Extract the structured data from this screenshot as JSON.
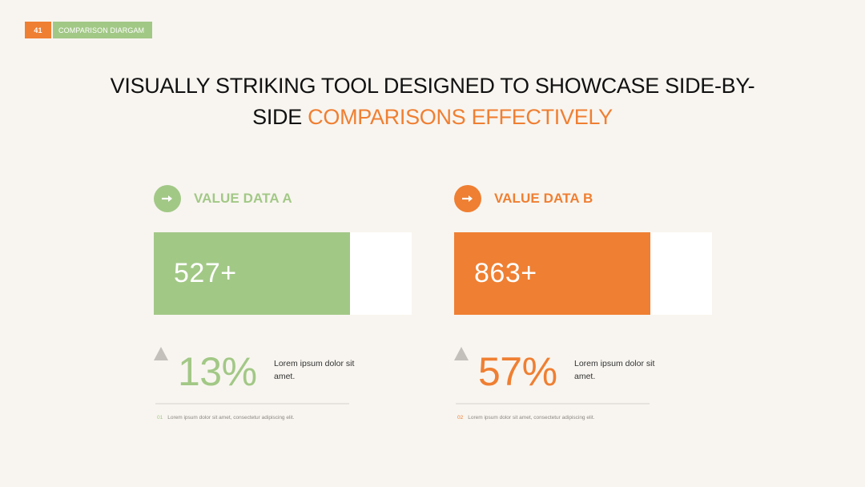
{
  "header": {
    "slide_number": "41",
    "section_label": "COMPARISON DIARGAM"
  },
  "headline": {
    "line1": "VISUALLY STRIKING TOOL DESIGNED TO SHOWCASE SIDE-BY-",
    "line2_plain": "SIDE ",
    "line2_accent": "COMPARISONS EFFECTIVELY"
  },
  "colors": {
    "green": "#a2c886",
    "orange": "#ef7f32",
    "background": "#f8f5f0"
  },
  "panels": [
    {
      "icon": "right-arrow-icon",
      "title": "VALUE DATA A",
      "value": "527+",
      "bar_fill_fraction": 0.76,
      "trend_icon": "up-triangle-icon",
      "percent": "13%",
      "description": "Lorem ipsum dolor sit amet.",
      "footnote_number": "01",
      "footnote": "Lorem ipsum dolor sit amet, consectetur adipiscing elit."
    },
    {
      "icon": "right-arrow-icon",
      "title": "VALUE DATA B",
      "value": "863+",
      "bar_fill_fraction": 0.76,
      "trend_icon": "up-triangle-icon",
      "percent": "57%",
      "description": "Lorem ipsum dolor sit amet.",
      "footnote_number": "02",
      "footnote": "Lorem ipsum dolor sit amet, consectetur adipiscing elit."
    }
  ]
}
